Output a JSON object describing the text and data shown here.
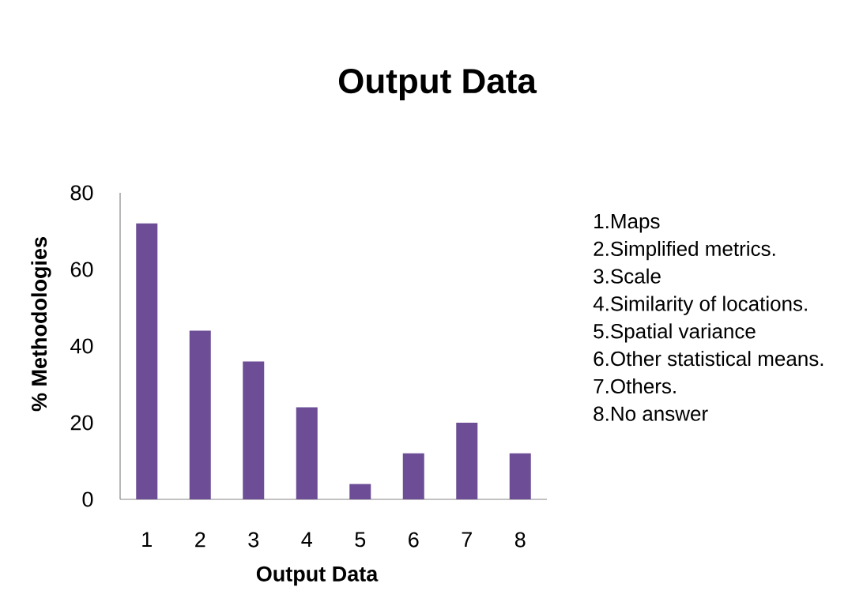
{
  "chart_data": {
    "type": "bar",
    "title": "Output Data",
    "xlabel": "Output Data",
    "ylabel": "% Methodologies",
    "categories": [
      "1",
      "2",
      "3",
      "4",
      "5",
      "6",
      "7",
      "8"
    ],
    "values": [
      72,
      44,
      36,
      24,
      4,
      12,
      20,
      12
    ],
    "color": "#6c4d96",
    "ylim": [
      0,
      80
    ],
    "yticks": [
      0,
      20,
      40,
      60,
      80
    ],
    "annotations": [
      "1.Maps",
      "2.Simplified metrics.",
      "3.Scale",
      "4.Similarity of locations.",
      "5.Spatial variance",
      "6.Other statistical means.",
      "7.Others.",
      "8.No answer"
    ]
  }
}
